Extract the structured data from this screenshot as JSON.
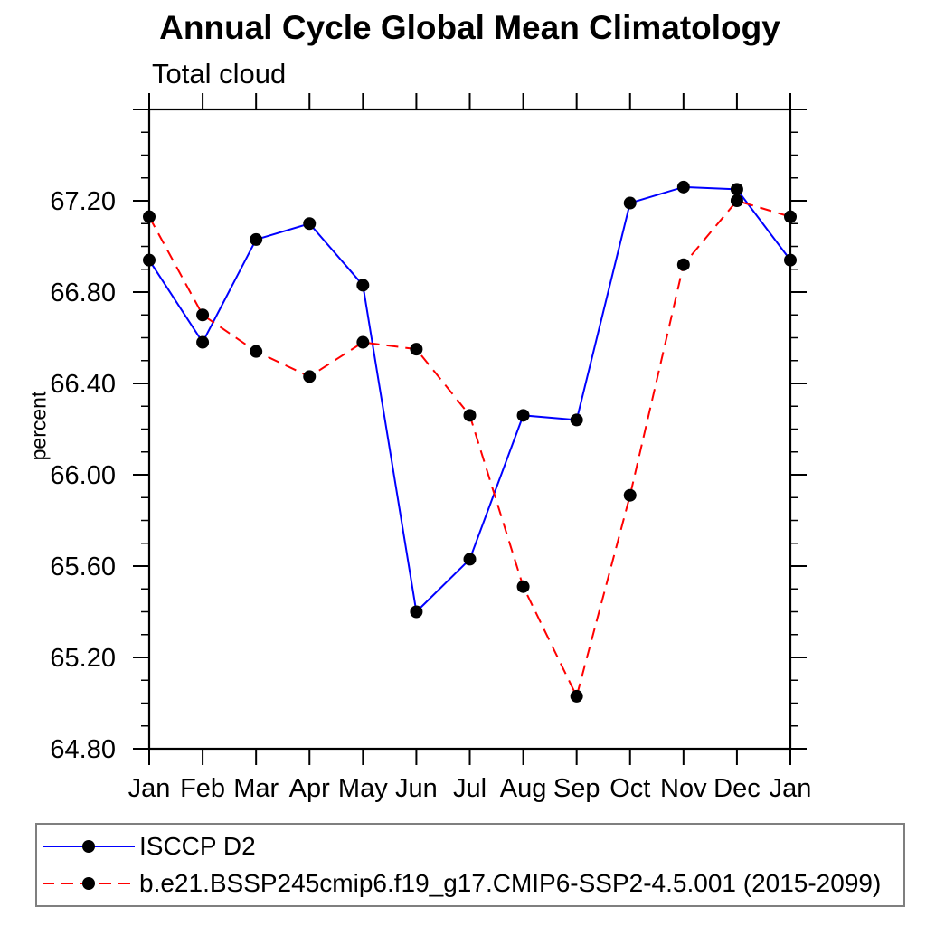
{
  "chart_data": {
    "type": "line",
    "title": "Annual Cycle Global Mean Climatology",
    "subtitle": "Total cloud",
    "xlabel": "",
    "ylabel": "percent",
    "categories": [
      "Jan",
      "Feb",
      "Mar",
      "Apr",
      "May",
      "Jun",
      "Jul",
      "Aug",
      "Sep",
      "Oct",
      "Nov",
      "Dec",
      "Jan"
    ],
    "series": [
      {
        "name": "ISCCP D2",
        "color": "#0000ff",
        "line_style": "solid",
        "values": [
          66.94,
          66.58,
          67.03,
          67.1,
          66.83,
          65.4,
          65.63,
          66.26,
          66.24,
          67.19,
          67.26,
          67.25,
          66.94
        ]
      },
      {
        "name": "b.e21.BSSP245cmip6.f19_g17.CMIP6-SSP2-4.5.001 (2015-2099)",
        "color": "#ff0000",
        "line_style": "dashed",
        "values": [
          67.13,
          66.7,
          66.54,
          66.43,
          66.58,
          66.55,
          66.26,
          65.51,
          65.03,
          65.91,
          66.92,
          67.2,
          67.13
        ]
      }
    ],
    "marker": "filled-circle",
    "marker_color": "#000000",
    "ylim": [
      64.8,
      67.6
    ],
    "ytick_major_interval": 0.4,
    "ytick_minor_interval": 0.1,
    "ytick_labels": [
      "64.80",
      "65.20",
      "65.60",
      "66.00",
      "66.40",
      "66.80",
      "67.20"
    ],
    "grid": false,
    "axis_color": "#000000",
    "legend_position": "bottom",
    "legend_border_color": "#7f7f7f"
  }
}
